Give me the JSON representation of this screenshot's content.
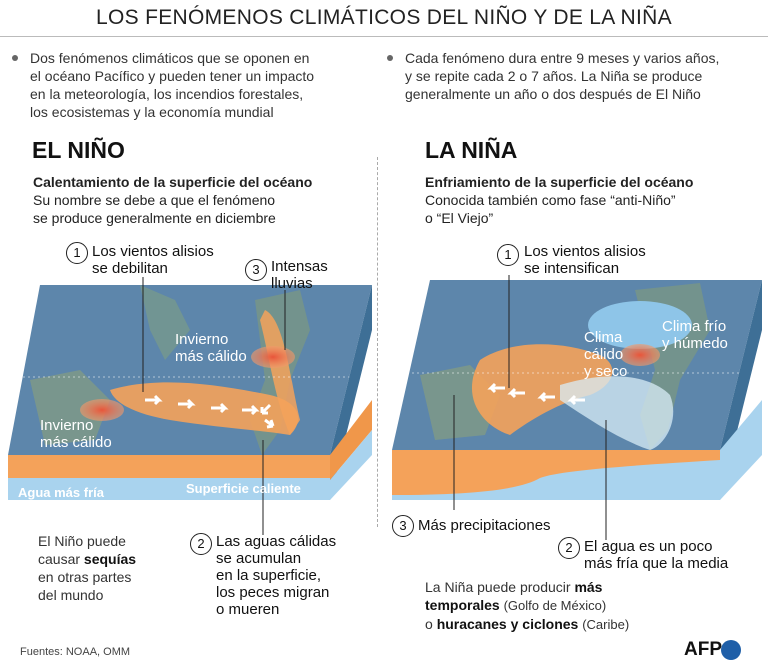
{
  "title": "LOS FENÓMENOS CLIMÁTICOS DEL NIÑO Y DE LA NIÑA",
  "intro_left": [
    "Dos fenómenos climáticos que se oponen en",
    "el océano Pacífico y pueden tener un impacto",
    "en la meteorología, los incendios forestales,",
    "los ecosistemas y la economía mundial"
  ],
  "intro_right": [
    "Cada fenómeno dura entre 9 meses y varios años,",
    "y se repite cada 2 o 7 años. La Niña se produce",
    "generalmente un año o dos después de El Niño"
  ],
  "nino": {
    "heading": "EL NIÑO",
    "subtitle": "Calentamiento de la superficie del océano",
    "desc": [
      "Su nombre se debe a que el fenómeno",
      "se produce generalmente en diciembre"
    ],
    "c1_num": "1",
    "c1": [
      "Los vientos alisios",
      "se debilitan"
    ],
    "c3_num": "3",
    "c3": [
      "Intensas",
      "lluvias"
    ],
    "map_winter_1": [
      "Invierno",
      "más cálido"
    ],
    "map_winter_2": [
      "Invierno",
      "más cálido"
    ],
    "cold_water": "Agua más fría",
    "warm_surface": "Superficie caliente",
    "c2_num": "2",
    "c2": [
      "Las aguas cálidas",
      "se acumulan",
      "en la superficie,",
      "los peces migran",
      "o mueren"
    ],
    "foot_pre": "El Niño puede",
    "foot_mid": "causar",
    "foot_bold": "sequías",
    "foot_l3": "en otras partes",
    "foot_l4": "del mundo"
  },
  "nina": {
    "heading": "LA NIÑA",
    "subtitle": "Enfriamiento de la superficie del océano",
    "desc": [
      "Conocida también como fase “anti-Niño”",
      "o “El Viejo”"
    ],
    "c1_num": "1",
    "c1": [
      "Los vientos alisios",
      "se intensifican"
    ],
    "map_cold": [
      "Clima frío",
      "y húmedo"
    ],
    "map_warm": [
      "Clima",
      "cálido",
      "y seco"
    ],
    "c3_num": "3",
    "c3": "Más precipitaciones",
    "c2_num": "2",
    "c2": [
      "El agua es un poco",
      "más fría que la media"
    ],
    "foot_l1": "La Niña puede producir",
    "foot_b1": "más",
    "foot_b2": "temporales",
    "foot_r2": "(Golfo de México)",
    "foot_o": "o",
    "foot_b3": "huracanes y ciclones",
    "foot_r3": "(Caribe)"
  },
  "source": "Fuentes: NOAA, OMM",
  "logo": "AFP",
  "colors": {
    "ocean": "#5f88ad",
    "warm": "#f4a25a",
    "cold": "#8ec5e8",
    "hot": "#e86a4a"
  }
}
